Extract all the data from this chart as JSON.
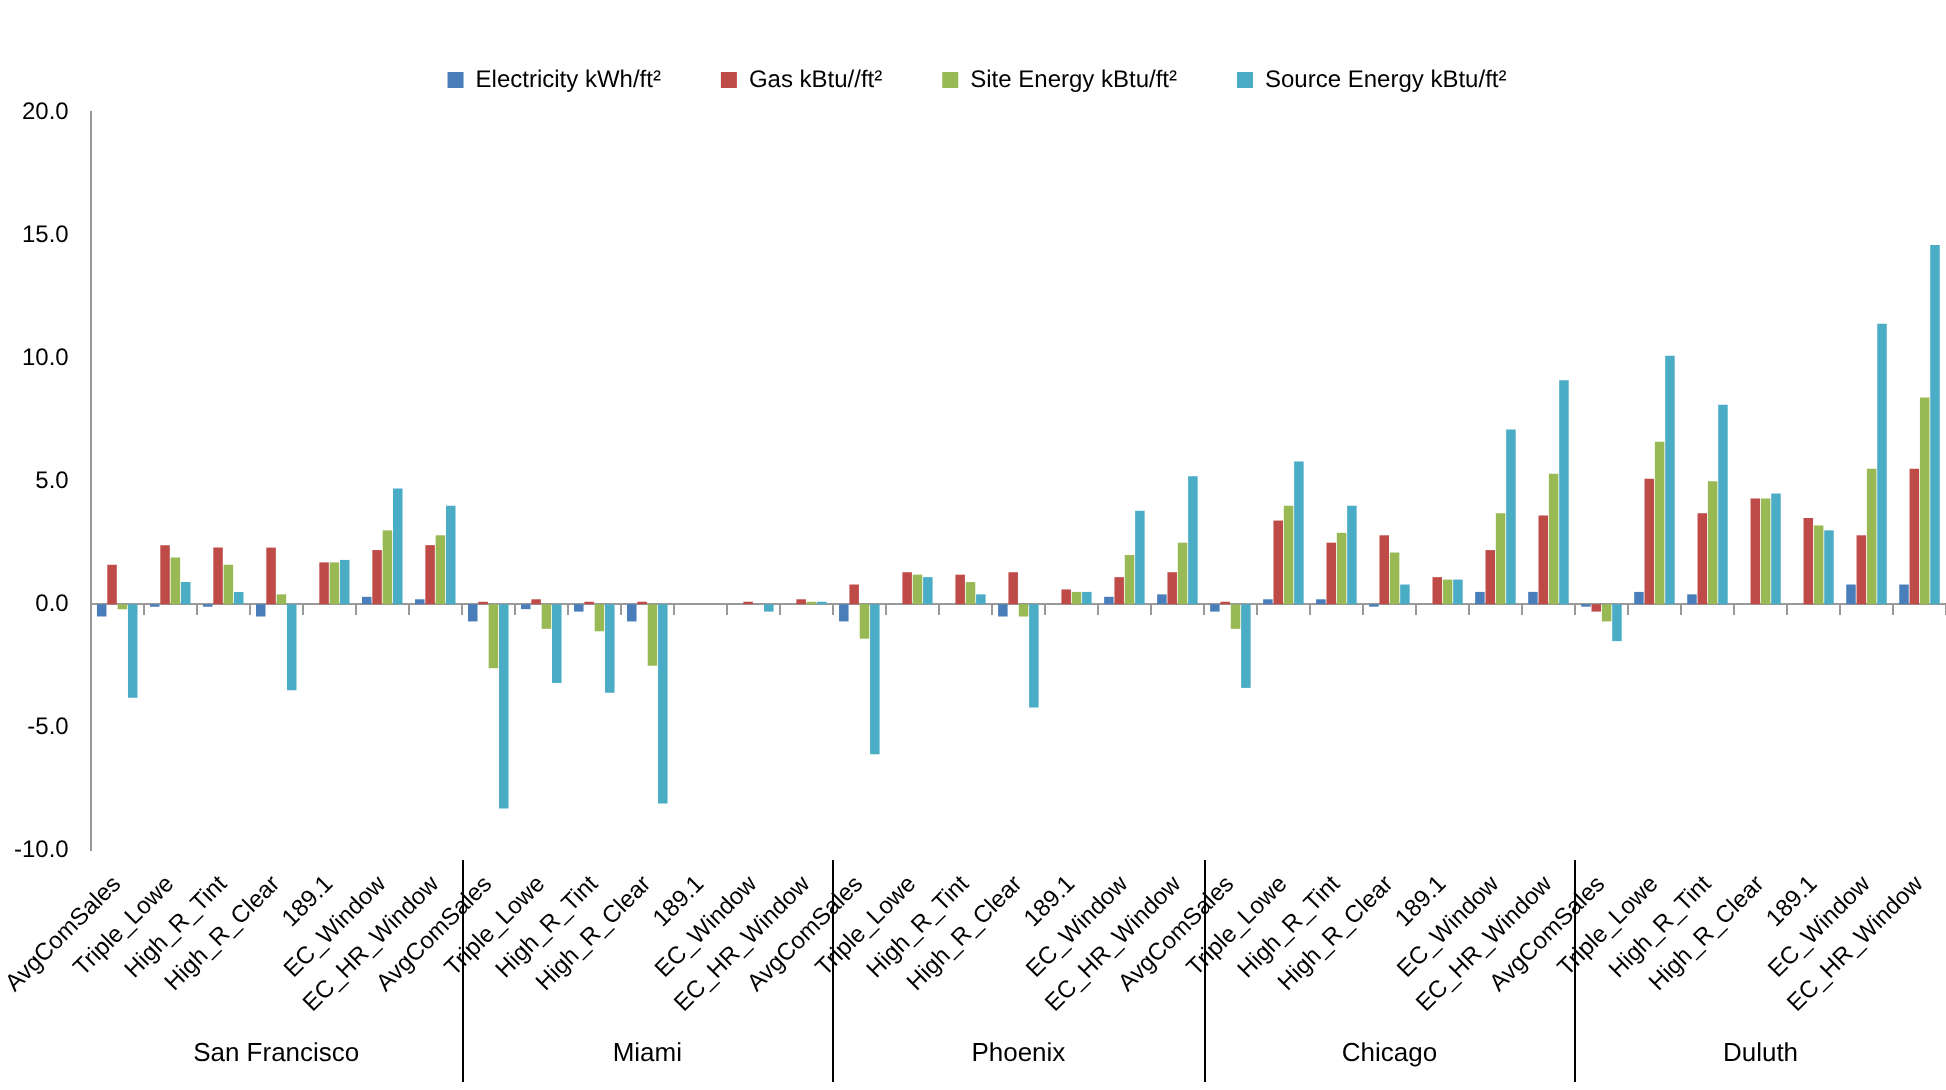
{
  "chart_data": {
    "type": "bar",
    "categories": [
      "AvgComSales",
      "Triple_Lowe",
      "High_R_Tint",
      "High_R_Clear",
      "189.1",
      "EC_Window",
      "EC_HR_Window",
      "AvgComSales",
      "Triple_Lowe",
      "High_R_Tint",
      "High_R_Clear",
      "189.1",
      "EC_Window",
      "EC_HR_Window",
      "AvgComSales",
      "Triple_Lowe",
      "High_R_Tint",
      "High_R_Clear",
      "189.1",
      "EC_Window",
      "EC_HR_Window",
      "AvgComSales",
      "Triple_Lowe",
      "High_R_Tint",
      "High_R_Clear",
      "189.1",
      "EC_Window",
      "EC_HR_Window",
      "AvgComSales",
      "Triple_Lowe",
      "High_R_Tint",
      "High_R_Clear",
      "189.1",
      "EC_Window",
      "EC_HR_Window"
    ],
    "annotations": [
      "San Francisco",
      "Miami",
      "Phoenix",
      "Chicago",
      "Duluth"
    ],
    "series": [
      {
        "name": "Electricity kWh/ft²",
        "color": "#4a7ebb",
        "values": [
          -0.5,
          -0.1,
          -0.1,
          -0.5,
          0,
          0.3,
          0.2,
          -0.7,
          -0.2,
          -0.3,
          -0.7,
          0,
          0,
          0,
          -0.7,
          0,
          0,
          -0.5,
          0,
          0.3,
          0.4,
          -0.3,
          0.2,
          0.2,
          -0.1,
          0,
          0.5,
          0.5,
          -0.1,
          0.5,
          0.4,
          0,
          0,
          0.8,
          0.8
        ]
      },
      {
        "name": "Gas kBtu//ft²",
        "color": "#be4b48",
        "values": [
          1.6,
          2.4,
          2.3,
          2.3,
          1.7,
          2.2,
          2.4,
          0.1,
          0.2,
          0.1,
          0.1,
          0,
          0.1,
          0.2,
          0.8,
          1.3,
          1.2,
          1.3,
          0.6,
          1.1,
          1.3,
          0.1,
          3.4,
          2.5,
          2.8,
          1.1,
          2.2,
          3.6,
          -0.3,
          5.1,
          3.7,
          4.3,
          3.5,
          2.8,
          5.5
        ]
      },
      {
        "name": "Site Energy kBtu/ft²",
        "color": "#98b954",
        "values": [
          -0.2,
          1.9,
          1.6,
          0.4,
          1.7,
          3.0,
          2.8,
          -2.6,
          -1.0,
          -1.1,
          -2.5,
          0,
          0,
          0.1,
          -1.4,
          1.2,
          0.9,
          -0.5,
          0.5,
          2.0,
          2.5,
          -1.0,
          4.0,
          2.9,
          2.1,
          1.0,
          3.7,
          5.3,
          -0.7,
          6.6,
          5.0,
          4.3,
          3.2,
          5.5,
          8.4
        ]
      },
      {
        "name": "Source Energy kBtu/ft²",
        "color": "#4bacc6",
        "values": [
          -3.8,
          0.9,
          0.5,
          -3.5,
          1.8,
          4.7,
          4.0,
          -8.3,
          -3.2,
          -3.6,
          -8.1,
          0,
          -0.3,
          0.1,
          -6.1,
          1.1,
          0.4,
          -4.2,
          0.5,
          3.8,
          5.2,
          -3.4,
          5.8,
          4.0,
          0.8,
          1.0,
          7.1,
          9.1,
          -1.5,
          10.1,
          8.1,
          4.5,
          3.0,
          11.4,
          14.6
        ]
      }
    ],
    "ylim": [
      -10,
      20
    ],
    "yticks": [
      {
        "value": -10,
        "label": "-10.0"
      },
      {
        "value": -5,
        "label": "-5.0"
      },
      {
        "value": 0,
        "label": "0.0"
      },
      {
        "value": 5,
        "label": "5.0"
      },
      {
        "value": 10,
        "label": "10.0"
      },
      {
        "value": 15,
        "label": "15.0"
      },
      {
        "value": 20,
        "label": "20.0"
      }
    ],
    "legend": "top"
  }
}
